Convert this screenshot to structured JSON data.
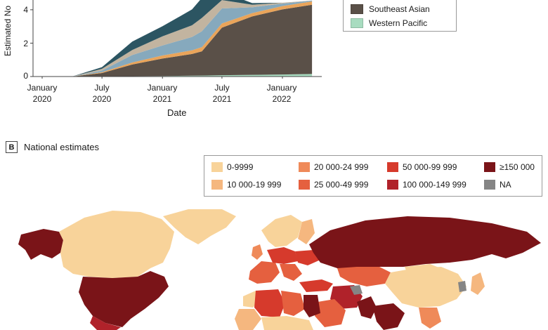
{
  "panel_a": {
    "ylabel": "Estimated No",
    "xlabel": "Date",
    "yticks": [
      "0",
      "2",
      "4"
    ],
    "xticks": [
      {
        "l1": "January",
        "l2": "2020"
      },
      {
        "l1": "July",
        "l2": "2020"
      },
      {
        "l1": "January",
        "l2": "2021"
      },
      {
        "l1": "July",
        "l2": "2021"
      },
      {
        "l1": "January",
        "l2": "2022"
      }
    ],
    "legend": [
      {
        "label": "Southeast Asian",
        "color": "#5a5048"
      },
      {
        "label": "Western Pacific",
        "color": "#a8dcc0"
      }
    ]
  },
  "panel_b": {
    "letter": "B",
    "title": "National estimates",
    "legend": [
      {
        "label": "0-9999",
        "color": "#f8d39a"
      },
      {
        "label": "10 000-19 999",
        "color": "#f5b77f"
      },
      {
        "label": "20 000-24 999",
        "color": "#ef8a59"
      },
      {
        "label": "25 000-49 999",
        "color": "#e5603f"
      },
      {
        "label": "50 000-99 999",
        "color": "#d63a2c"
      },
      {
        "label": "100 000-149 999",
        "color": "#b0222a"
      },
      {
        "label": "≥150 000",
        "color": "#7a1418"
      },
      {
        "label": "NA",
        "color": "#858585"
      }
    ]
  },
  "chart_data": {
    "type": "area",
    "xlabel": "Date",
    "ylabel": "Estimated No",
    "ylim": [
      0,
      4.5
    ],
    "x": [
      "2020-01",
      "2020-04",
      "2020-07",
      "2020-10",
      "2021-01",
      "2021-04",
      "2021-05",
      "2021-07",
      "2021-10",
      "2022-01",
      "2022-04"
    ],
    "series": [
      {
        "name": "Western Pacific",
        "color": "#a8dcc0",
        "values": [
          0,
          0,
          0.01,
          0.02,
          0.03,
          0.05,
          0.06,
          0.08,
          0.1,
          0.12,
          0.15
        ]
      },
      {
        "name": "Southeast Asian",
        "color": "#5a5048",
        "values": [
          0,
          0,
          0.2,
          0.7,
          1.05,
          1.3,
          1.45,
          2.85,
          3.5,
          3.9,
          4.15
        ]
      },
      {
        "name": "",
        "color": "#e9a45a",
        "values": [
          0,
          0,
          0.05,
          0.12,
          0.18,
          0.22,
          0.25,
          0.25,
          0.2,
          0.2,
          0.2
        ]
      },
      {
        "name": "",
        "color": "#86a9bd",
        "values": [
          0,
          0,
          0.1,
          0.45,
          0.6,
          0.8,
          0.95,
          0.9,
          0.35,
          0.15,
          0.05
        ]
      },
      {
        "name": "",
        "color": "#c2b4a0",
        "values": [
          0,
          0,
          0.1,
          0.3,
          0.55,
          0.7,
          0.8,
          0.5,
          0.15,
          0.05,
          0.0
        ]
      },
      {
        "name": "",
        "color": "#2c5562",
        "values": [
          0,
          0,
          0.1,
          0.5,
          0.6,
          0.95,
          1.2,
          0.5,
          0.1,
          0.0,
          0.0
        ]
      }
    ],
    "legend": [
      "Southeast Asian",
      "Western Pacific"
    ]
  }
}
